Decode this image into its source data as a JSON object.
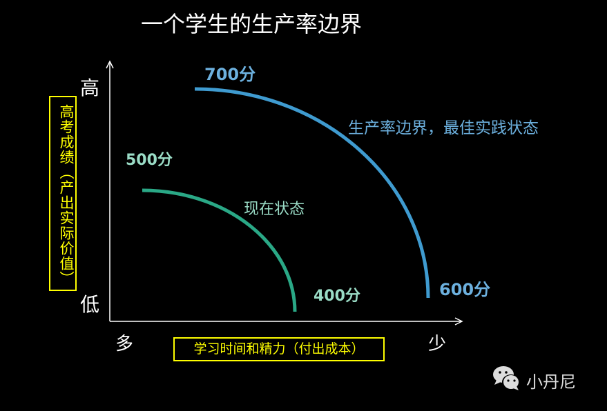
{
  "title": "一个学生的生产率边界",
  "y_axis": {
    "label": "高考成绩（产出实际价值）",
    "high": "高",
    "low": "低"
  },
  "x_axis": {
    "label": "学习时间和精力（付出成本）",
    "left": "多",
    "right": "少"
  },
  "curves": [
    {
      "name": "生产率边界，最佳实践状态",
      "top_label": "700分",
      "bottom_label": "600分",
      "color": "#3f9bd0"
    },
    {
      "name": "现在状态",
      "top_label": "500分",
      "bottom_label": "400分",
      "color": "#2aa886"
    }
  ],
  "watermark": {
    "text": "小丹尼",
    "icon": "wechat-icon"
  }
}
